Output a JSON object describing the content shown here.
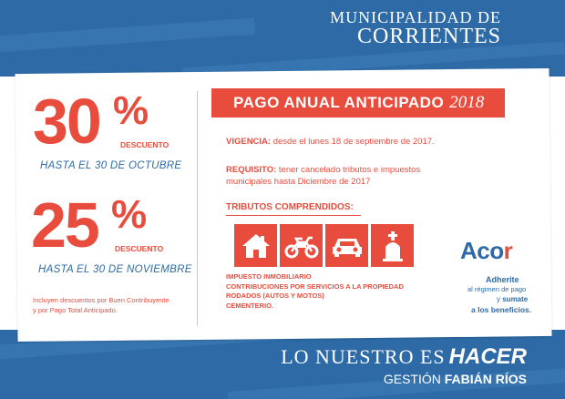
{
  "header": {
    "line1": "MUNICIPALIDAD DE",
    "line2": "CORRIENTES"
  },
  "discounts": [
    {
      "value": "30",
      "sign": "%",
      "label": "DESCUENTO",
      "until": "HASTA EL 30 DE OCTUBRE"
    },
    {
      "value": "25",
      "sign": "%",
      "label": "DESCUENTO",
      "until": "HASTA EL 30 DE NOVIEMBRE"
    }
  ],
  "note": {
    "line1": "Incluyen descuentos por Buen Contribuyente",
    "line2": "y por Pago Total Anticipado."
  },
  "pago": {
    "title": "PAGO ANUAL ANTICIPADO",
    "year": "2018"
  },
  "vigencia": {
    "label": "VIGENCIA:",
    "text": "desde el lunes 18 de septiembre de 2017."
  },
  "requisito": {
    "label": "REQUISITO:",
    "text1": "tener cancelado tributos e impuestos",
    "text2": "municipales hasta Diciembre de 2017"
  },
  "tributos": {
    "title": "TRIBUTOS COMPRENDIDOS:",
    "icons": [
      "house-icon",
      "motorcycle-icon",
      "car-icon",
      "tombstone-icon"
    ],
    "items": [
      "IMPUESTO INMOBILIARIO",
      "CONTRIBUCIONES POR SERVICIOS A LA PROPIEDAD",
      "RODADOS (AUTOS Y MOTOS)",
      "CEMENTERIO."
    ]
  },
  "acor": {
    "logo_a": "Aco",
    "logo_r": "r",
    "adherite": "Adherite",
    "regimen": "al régimen de pago",
    "y": "y",
    "sumate": "sumate",
    "beneficios": "a los beneficios."
  },
  "footer": {
    "slogan_a": "LO NUESTRO ES",
    "slogan_b": "HACER",
    "gestion_a": "GESTIÓN",
    "gestion_b": "FABIÁN RÍOS"
  },
  "colors": {
    "blue": "#2d6aa6",
    "red": "#e84c3d",
    "white": "#ffffff"
  }
}
